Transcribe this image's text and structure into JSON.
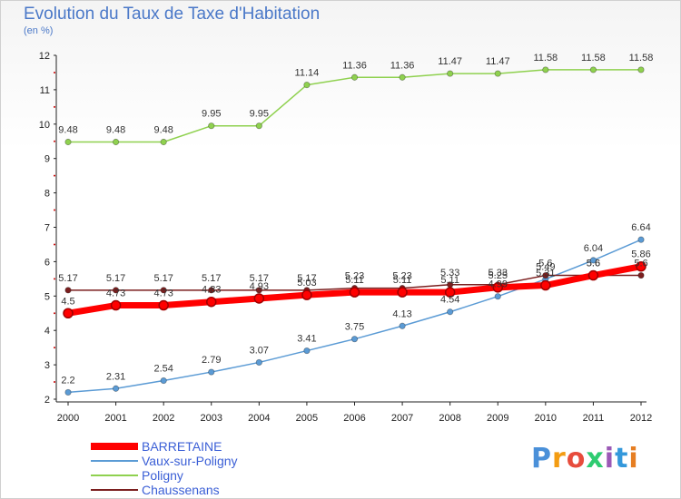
{
  "header": {
    "title": "Evolution du Taux de Taxe d'Habitation",
    "subtitle": "(en %)"
  },
  "logo": {
    "letters": [
      "P",
      "r",
      "o",
      "x",
      "i",
      "t",
      "i"
    ],
    "colors": [
      "#4a90d9",
      "#f39c12",
      "#e74c3c",
      "#2ecc71",
      "#9b59b6",
      "#3498db",
      "#e67e22"
    ]
  },
  "chart_data": {
    "type": "line",
    "title": "Evolution du Taux de Taxe d'Habitation",
    "ylabel": "(en %)",
    "xlabel": "",
    "x": [
      "2000",
      "2001",
      "2002",
      "2003",
      "2004",
      "2005",
      "2006",
      "2007",
      "2008",
      "2009",
      "2010",
      "2011",
      "2012"
    ],
    "ylim": [
      2,
      12
    ],
    "yticks": [
      2,
      3,
      4,
      5,
      6,
      7,
      8,
      9,
      10,
      11,
      12
    ],
    "grid": false,
    "legend": "bottom-left",
    "series": [
      {
        "name": "BARRETAINE",
        "color": "#ff0000",
        "values": [
          4.5,
          4.73,
          4.73,
          4.83,
          4.93,
          5.03,
          5.11,
          5.11,
          5.11,
          5.25,
          5.31,
          5.6,
          5.86
        ],
        "labels": [
          "4.5",
          "4.73",
          "4.73",
          "4.83",
          "4.93",
          "5.03",
          "5.11",
          "5.11",
          "5.11",
          "5.25",
          "5.31",
          "5.6",
          "5.86"
        ]
      },
      {
        "name": "Vaux-sur-Poligny",
        "color": "#5b9bd5",
        "values": [
          2.2,
          2.31,
          2.54,
          2.79,
          3.07,
          3.41,
          3.75,
          4.13,
          4.54,
          4.99,
          5.49,
          6.04,
          6.64
        ],
        "labels": [
          "2.2",
          "2.31",
          "2.54",
          "2.79",
          "3.07",
          "3.41",
          "3.75",
          "4.13",
          "4.54",
          "4.99",
          "5.49",
          "6.04",
          "6.64"
        ]
      },
      {
        "name": "Poligny",
        "color": "#8fd14f",
        "values": [
          9.48,
          9.48,
          9.48,
          9.95,
          9.95,
          11.14,
          11.36,
          11.36,
          11.47,
          11.47,
          11.58,
          11.58,
          11.58
        ],
        "labels": [
          "9.48",
          "9.48",
          "9.48",
          "9.95",
          "9.95",
          "11.14",
          "11.36",
          "11.36",
          "11.47",
          "11.47",
          "11.58",
          "11.58",
          "11.58"
        ]
      },
      {
        "name": "Chaussenans",
        "color": "#7b1f1f",
        "values": [
          5.17,
          5.17,
          5.17,
          5.17,
          5.17,
          5.17,
          5.23,
          5.23,
          5.33,
          5.33,
          5.6,
          5.6,
          5.6
        ],
        "labels": [
          "5.17",
          "5.17",
          "5.17",
          "5.17",
          "5.17",
          "5.17",
          "5.23",
          "5.23",
          "5.33",
          "5.33",
          "5.6",
          "5.6",
          "5.6"
        ]
      }
    ]
  }
}
